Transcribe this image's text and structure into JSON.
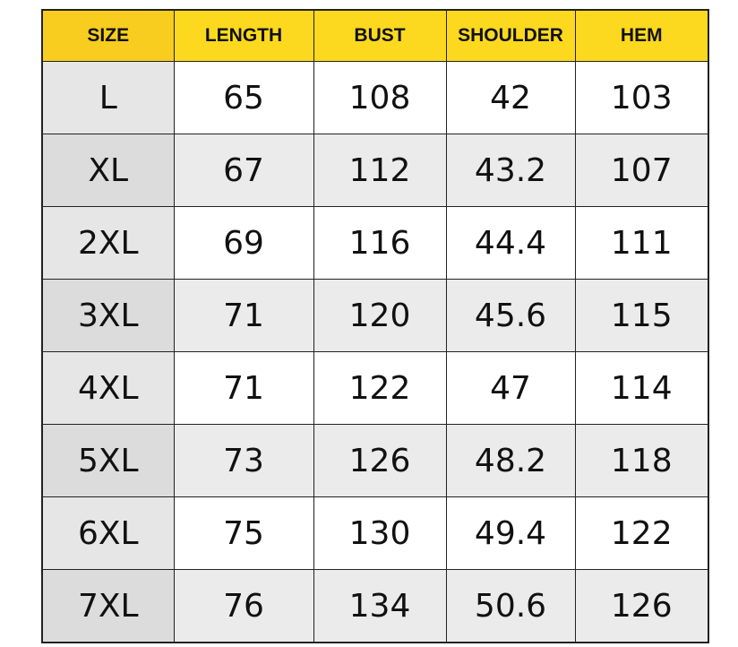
{
  "headers": [
    "SIZE",
    "LENGTH",
    "BUST",
    "SHOULDER",
    "HEM"
  ],
  "rows": [
    [
      "L",
      "65",
      "108",
      "42",
      "103"
    ],
    [
      "XL",
      "67",
      "112",
      "43.2",
      "107"
    ],
    [
      "2XL",
      "69",
      "116",
      "44.4",
      "111"
    ],
    [
      "3XL",
      "71",
      "120",
      "45.6",
      "115"
    ],
    [
      "4XL",
      "71",
      "122",
      "47",
      "114"
    ],
    [
      "5XL",
      "73",
      "126",
      "48.2",
      "118"
    ],
    [
      "6XL",
      "75",
      "130",
      "49.4",
      "122"
    ],
    [
      "7XL",
      "76",
      "134",
      "50.6",
      "126"
    ]
  ],
  "colors": {
    "header": "#fcd91f",
    "header_first": "#f8cd1f",
    "row_alt": "#ebebeb",
    "size_col": "#e6e6e6"
  }
}
